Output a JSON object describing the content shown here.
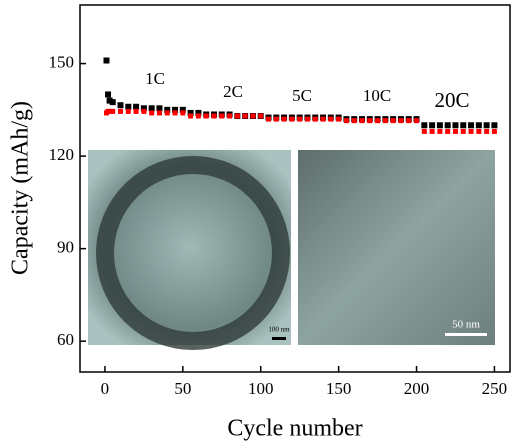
{
  "chart_data": {
    "type": "scatter",
    "xlabel": "Cycle number",
    "ylabel": "Capacity (mAh/g)",
    "xlim": [
      -16,
      260
    ],
    "ylim": [
      50,
      169
    ],
    "xticks": [
      0,
      50,
      100,
      150,
      200,
      250
    ],
    "yticks": [
      60,
      90,
      120,
      150
    ],
    "annotations": [
      "1C",
      "2C",
      "5C",
      "10C",
      "20C"
    ],
    "inset_labels": [
      "100 nm",
      "50 nm"
    ],
    "x": [
      1,
      2,
      3,
      5,
      10,
      15,
      20,
      25,
      30,
      35,
      40,
      45,
      50,
      55,
      60,
      65,
      70,
      75,
      80,
      85,
      90,
      95,
      100,
      105,
      110,
      115,
      120,
      125,
      130,
      135,
      140,
      145,
      150,
      155,
      160,
      165,
      170,
      175,
      180,
      185,
      190,
      195,
      200,
      205,
      210,
      215,
      220,
      225,
      230,
      235,
      240,
      245,
      250
    ],
    "series": [
      {
        "color": "#000000",
        "values": [
          151,
          140,
          138,
          137.5,
          136.5,
          136,
          136,
          135.5,
          135.5,
          135.5,
          135,
          135,
          135,
          134,
          134,
          133.5,
          133.5,
          133.5,
          133.5,
          133,
          133,
          133,
          133,
          132.5,
          132.5,
          132.5,
          132.5,
          132.5,
          132.5,
          132.5,
          132.5,
          132.5,
          132.5,
          132,
          132,
          132,
          132,
          132,
          132,
          132,
          132,
          132,
          132,
          130,
          130,
          130,
          130,
          130,
          130,
          130,
          130,
          130,
          130
        ]
      },
      {
        "color": "#ff0000",
        "values": [
          134,
          134.5,
          134.5,
          134.5,
          134.5,
          134.5,
          134.5,
          134.5,
          134,
          134,
          134,
          134,
          134,
          133,
          133,
          133,
          133,
          133,
          133,
          133,
          133,
          133,
          133,
          132,
          132,
          132,
          132,
          132,
          132,
          132,
          132,
          132,
          132,
          131.5,
          131.5,
          131.5,
          131.5,
          131.5,
          131.5,
          131.5,
          131.5,
          131.5,
          131.5,
          128,
          128,
          128,
          128,
          128,
          128,
          128,
          128,
          128,
          128
        ]
      }
    ]
  }
}
